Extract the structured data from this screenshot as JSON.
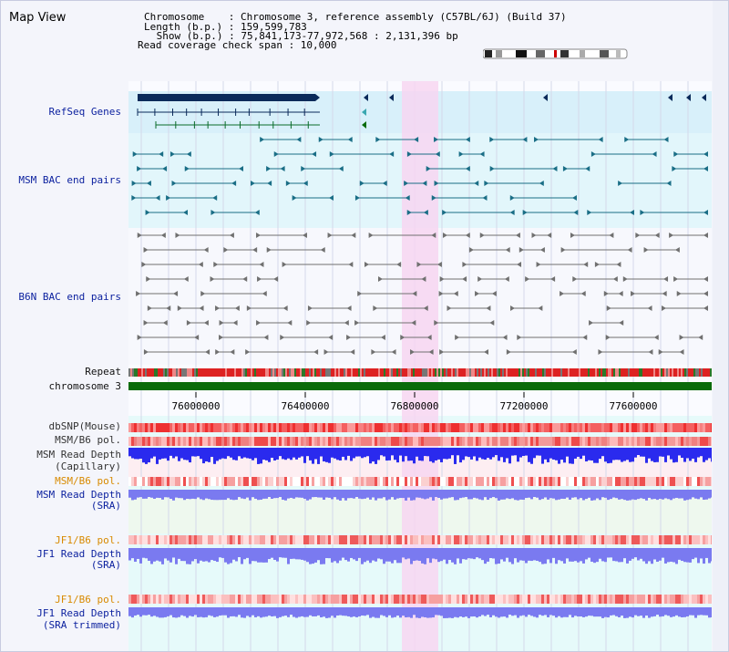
{
  "view": {
    "title": "Map View",
    "header_lines": [
      "Chromosome    : Chromosome 3, reference assembly (C57BL/6J) (Build 37)",
      "Length (b.p.) : 159,599,783",
      " Show (b.p.) : 75,841,173-77,972,568 : 2,131,396 bp",
      "Read coverage check span : 10,000"
    ]
  },
  "tracks": {
    "refseq": "RefSeq Genes",
    "msm_bac": "MSM BAC end pairs",
    "b6n_bac": "B6N BAC end pairs",
    "repeat": "Repeat",
    "chromosome": "chromosome 3",
    "dbsnp": "dbSNP(Mouse)",
    "msm_pol_1": "MSM/B6 pol.",
    "msm_depth_cap_1": "MSM Read Depth",
    "msm_depth_cap_2": "(Capillary)",
    "msm_pol_2": "MSM/B6 pol.",
    "msm_depth_sra_1": "MSM Read Depth",
    "msm_depth_sra_2": "(SRA)",
    "jf1_pol_1": "JF1/B6 pol.",
    "jf1_depth_sra_1": "JF1 Read Depth",
    "jf1_depth_sra_2": "(SRA)",
    "jf1_pol_2": "JF1/B6 pol.",
    "jf1_depth_trim_1": "JF1 Read Depth",
    "jf1_depth_trim_2": "(SRA trimmed)"
  },
  "axis": {
    "ticks": [
      "76000000",
      "76400000",
      "76800000",
      "77200000",
      "77600000"
    ]
  },
  "colors": {
    "refseq_band": "#d8f0fa",
    "msm_band": "#e2f6fb",
    "highlight": "#f7d6f1",
    "chromosome_bar": "#0a6b0a",
    "gene_dark": "#0a2a5a",
    "gene_teal": "#1a6e86",
    "bac_gray": "#707070",
    "depth_blue": "#2a2aee",
    "depth_light_blue": "#7a7af0",
    "snp_red": "#ee3030"
  }
}
